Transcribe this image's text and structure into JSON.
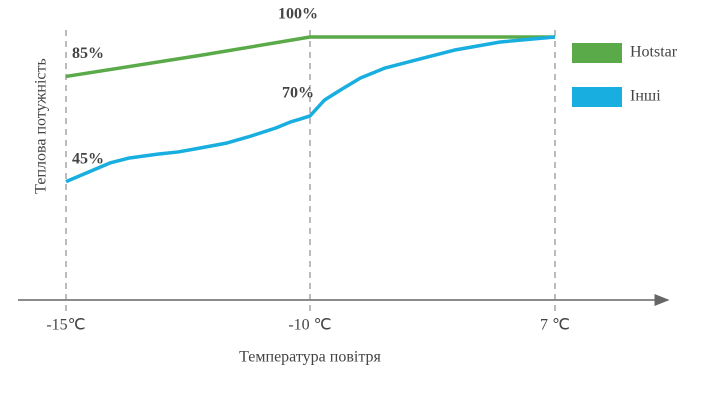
{
  "chart_data": {
    "type": "line",
    "y_label": "Теплова потужність",
    "x_label": "Температура повітря",
    "xticks": [
      {
        "value": -15,
        "label": "-15℃"
      },
      {
        "value": -10,
        "label": "-10 ℃"
      },
      {
        "value": 7,
        "label": "7 ℃"
      }
    ],
    "ylim": [
      0,
      100
    ],
    "legend": "right",
    "series": [
      {
        "name": "Hotstar",
        "color": "#5aaa4a",
        "x": [
          -15,
          -12.25,
          -10,
          7
        ],
        "values": [
          85,
          93,
          100,
          100
        ],
        "value_labels": [
          "85%",
          null,
          "100%",
          null
        ]
      },
      {
        "name": "Інші",
        "color": "#18aee0",
        "x": [
          -15,
          -14.1,
          -13.7,
          -13.1,
          -12.7,
          -12.25,
          -11.7,
          -11.2,
          -10.7,
          -10.4,
          -10.2,
          -10,
          -9,
          -7.9,
          -6.5,
          -4.8,
          -2.4,
          0,
          3.2,
          7
        ],
        "values": [
          45,
          52.1,
          54,
          55.5,
          56.3,
          57.8,
          59.7,
          62.4,
          65.4,
          67.7,
          68.8,
          70,
          76,
          79.8,
          84.4,
          88.2,
          91.6,
          95,
          98.1,
          100
        ],
        "value_labels": [
          "45%",
          null,
          null,
          null,
          null,
          null,
          null,
          null,
          null,
          null,
          null,
          "70%",
          null,
          null,
          null,
          null,
          null,
          null,
          null,
          null
        ]
      }
    ]
  }
}
